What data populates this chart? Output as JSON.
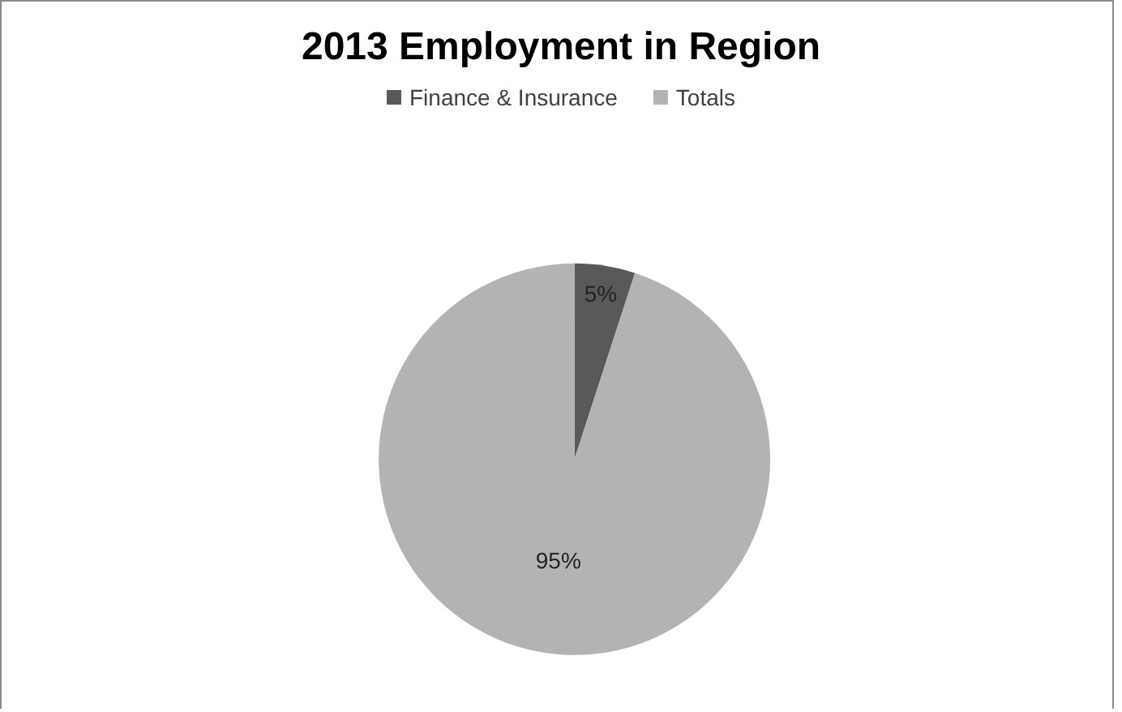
{
  "chart_data": {
    "type": "pie",
    "title": "2013 Employment in Region",
    "categories": [
      "Finance & Insurance",
      "Totals"
    ],
    "values": [
      5,
      95
    ],
    "colors": [
      "#595959",
      "#b3b3b3"
    ],
    "value_labels": [
      "5%",
      "95%"
    ],
    "legend": "top"
  }
}
